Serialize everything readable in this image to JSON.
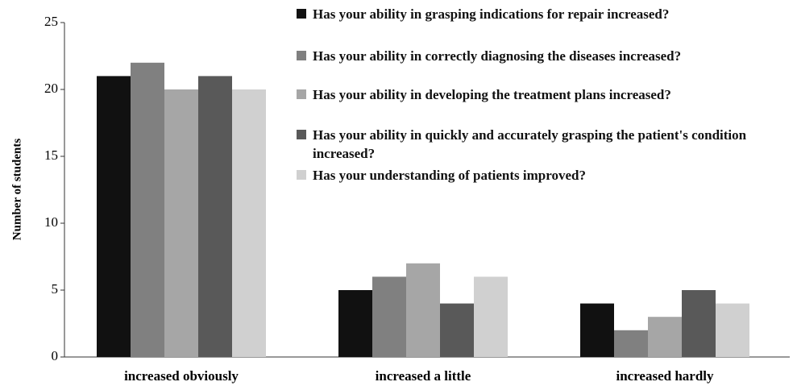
{
  "chart_data": {
    "type": "bar",
    "y_label": "Number of students",
    "categories": [
      "increased obviously",
      "increased a little",
      "increased hardly"
    ],
    "series": [
      {
        "name": "Has your ability in grasping indications for repair increased?",
        "color": "#111111",
        "values": [
          21,
          5,
          4
        ]
      },
      {
        "name": "Has your ability in correctly diagnosing the diseases increased?",
        "color": "#808080",
        "values": [
          22,
          6,
          2
        ]
      },
      {
        "name": "Has your ability in developing the treatment plans increased?",
        "color": "#a6a6a6",
        "values": [
          20,
          7,
          3
        ]
      },
      {
        "name": "Has your ability in quickly and accurately grasping the patient's condition increased?",
        "color": "#595959",
        "values": [
          21,
          4,
          5
        ]
      },
      {
        "name": "Has your understanding of patients improved?",
        "color": "#d0d0d0",
        "values": [
          20,
          6,
          4
        ]
      }
    ],
    "ylim": [
      0,
      25
    ],
    "yticks": [
      0,
      5,
      10,
      15,
      20,
      25
    ],
    "grid": false,
    "legend": "top-right"
  }
}
